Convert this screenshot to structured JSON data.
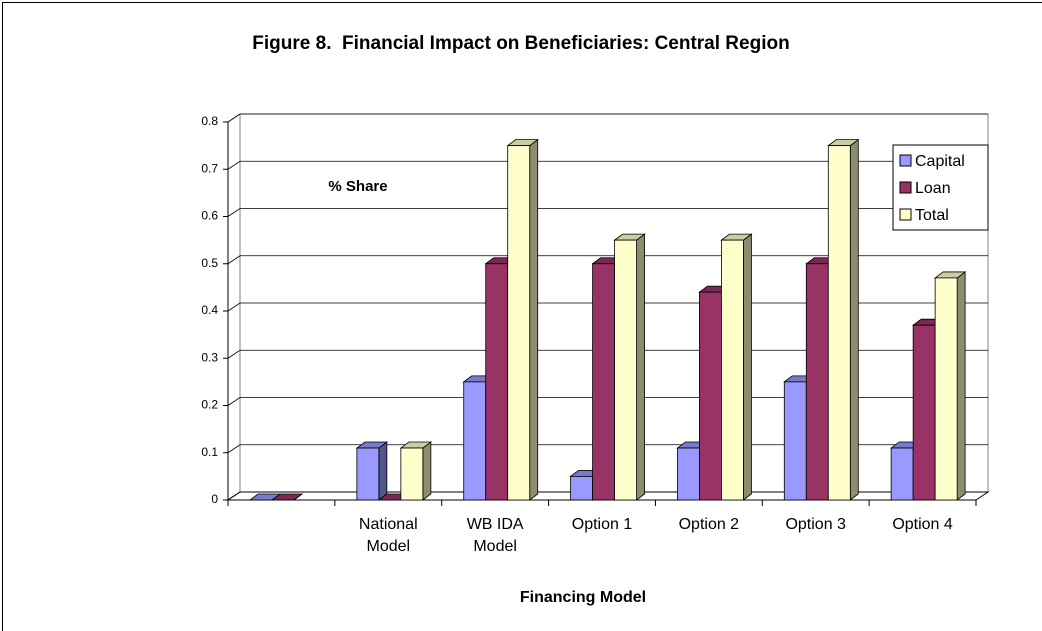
{
  "chart_data": {
    "type": "bar3d",
    "title": "Figure 8.  Financial Impact on Beneficiaries: Central Region",
    "annotation": "% Share",
    "x_label": "Financing Model",
    "categories": [
      null,
      "National Model",
      "WB IDA Model",
      "Option 1",
      "Option 2",
      "Option 3",
      "Option 4"
    ],
    "series": [
      {
        "name": "Capital",
        "color": "#9999ff",
        "values": [
          0,
          0.11,
          0.25,
          0.05,
          0.11,
          0.25,
          0.11
        ]
      },
      {
        "name": "Loan",
        "color": "#993366",
        "values": [
          0,
          0,
          0.5,
          0.5,
          0.44,
          0.5,
          0.37
        ]
      },
      {
        "name": "Total",
        "color": "#ffffcc",
        "values": [
          null,
          0.11,
          0.75,
          0.55,
          0.55,
          0.75,
          0.47
        ]
      }
    ],
    "ylim": [
      0,
      0.8
    ],
    "yticks": [
      0,
      0.1,
      0.2,
      0.3,
      0.4,
      0.5,
      0.6,
      0.7,
      0.8
    ],
    "grid": true,
    "legend": "top-right"
  }
}
